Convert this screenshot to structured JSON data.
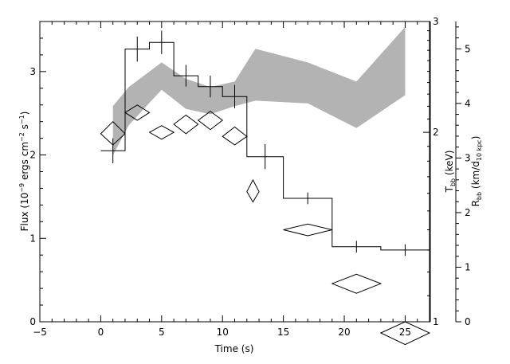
{
  "chart_data": {
    "type": "line",
    "title": "",
    "xlabel": "Time (s)",
    "ylabel_left": {
      "main": "Flux (10",
      "sup1": "−9",
      "mid": " ergs cm",
      "sup2": "−2",
      "mid2": " s",
      "sup3": "−1",
      "end": ")"
    },
    "ylabel_right1": {
      "main": "T",
      "sub": "bb",
      "end": " (keV)"
    },
    "ylabel_right2": {
      "main": "R",
      "sub": "bb",
      "mid": " (km/d",
      "sub2": "10 kpc",
      "end": ")"
    },
    "xlim": [
      -5,
      27
    ],
    "ylim_flux": [
      0,
      3.6
    ],
    "ylim_tbb": [
      1,
      3
    ],
    "tbb_log_scale": true,
    "ylim_rbb": [
      0,
      5.5
    ],
    "x_ticks": [
      -5,
      0,
      5,
      10,
      15,
      20,
      25
    ],
    "x_tick_labels": [
      "−5",
      "0",
      "5",
      "10",
      "15",
      "20",
      "25"
    ],
    "flux_ticks": [
      0,
      1,
      2,
      3
    ],
    "flux_tick_labels": [
      "0",
      "1",
      "2",
      "3"
    ],
    "tbb_ticks": [
      1,
      2,
      3
    ],
    "tbb_tick_labels": [
      "1",
      "2",
      "3"
    ],
    "rbb_ticks": [
      0,
      1,
      2,
      3,
      4,
      5
    ],
    "rbb_tick_labels": [
      "0",
      "1",
      "2",
      "3",
      "4",
      "5"
    ],
    "series": [
      {
        "kind": "flux_histogram",
        "bins": [
          {
            "x0": 0,
            "x1": 2,
            "y": 2.05,
            "err": 0.15
          },
          {
            "x0": 2,
            "x1": 4,
            "y": 3.27,
            "err": 0.15
          },
          {
            "x0": 4,
            "x1": 6,
            "y": 3.35,
            "err": 0.14
          },
          {
            "x0": 6,
            "x1": 8,
            "y": 2.95,
            "err": 0.13
          },
          {
            "x0": 8,
            "x1": 10,
            "y": 2.82,
            "err": 0.13
          },
          {
            "x0": 10,
            "x1": 12,
            "y": 2.7,
            "err": 0.14
          },
          {
            "x0": 12,
            "x1": 15,
            "y": 1.98,
            "err": 0.15
          },
          {
            "x0": 15,
            "x1": 19,
            "y": 1.48,
            "err": 0.07
          },
          {
            "x0": 19,
            "x1": 23,
            "y": 0.9,
            "err": 0.07
          },
          {
            "x0": 23,
            "x1": 27,
            "y": 0.86,
            "err": 0.07
          }
        ]
      },
      {
        "kind": "tbb_diamonds",
        "points": [
          {
            "x": 1,
            "xerr": 1,
            "y": 1.99,
            "ylo": 1.91,
            "yhi": 2.08
          },
          {
            "x": 3,
            "xerr": 1,
            "y": 2.15,
            "ylo": 2.09,
            "yhi": 2.21
          },
          {
            "x": 5,
            "xerr": 1,
            "y": 2.0,
            "ylo": 1.95,
            "yhi": 2.05
          },
          {
            "x": 7,
            "xerr": 1,
            "y": 2.06,
            "ylo": 1.99,
            "yhi": 2.13
          },
          {
            "x": 9,
            "xerr": 1,
            "y": 2.09,
            "ylo": 2.02,
            "yhi": 2.16
          },
          {
            "x": 11,
            "xerr": 1,
            "y": 1.97,
            "ylo": 1.91,
            "yhi": 2.04
          },
          {
            "x": 12.5,
            "xerr": 0.5,
            "y": 1.61,
            "ylo": 1.55,
            "yhi": 1.68
          },
          {
            "x": 17,
            "xerr": 2,
            "y": 1.4,
            "ylo": 1.37,
            "yhi": 1.43
          },
          {
            "x": 21,
            "xerr": 2,
            "y": 1.15,
            "ylo": 1.11,
            "yhi": 1.19
          },
          {
            "x": 25,
            "xerr": 2,
            "y": 0.96,
            "ylo": 0.92,
            "yhi": 1.0
          }
        ]
      },
      {
        "kind": "rbb_band",
        "band": [
          {
            "x": 1,
            "lo": 3.05,
            "hi": 3.95
          },
          {
            "x": 2.3,
            "lo": 3.6,
            "hi": 4.3
          },
          {
            "x": 5,
            "lo": 4.25,
            "hi": 4.75
          },
          {
            "x": 7,
            "lo": 3.9,
            "hi": 4.45
          },
          {
            "x": 9,
            "lo": 3.8,
            "hi": 4.3
          },
          {
            "x": 11,
            "lo": 3.95,
            "hi": 4.4
          },
          {
            "x": 12.7,
            "lo": 4.05,
            "hi": 5.0
          },
          {
            "x": 17,
            "lo": 4.0,
            "hi": 4.75
          },
          {
            "x": 21,
            "lo": 3.55,
            "hi": 4.4
          },
          {
            "x": 25,
            "lo": 4.15,
            "hi": 5.4
          }
        ]
      }
    ],
    "colors": {
      "band": "#b3b3b3",
      "line": "#000000",
      "background": "#ffffff"
    }
  }
}
